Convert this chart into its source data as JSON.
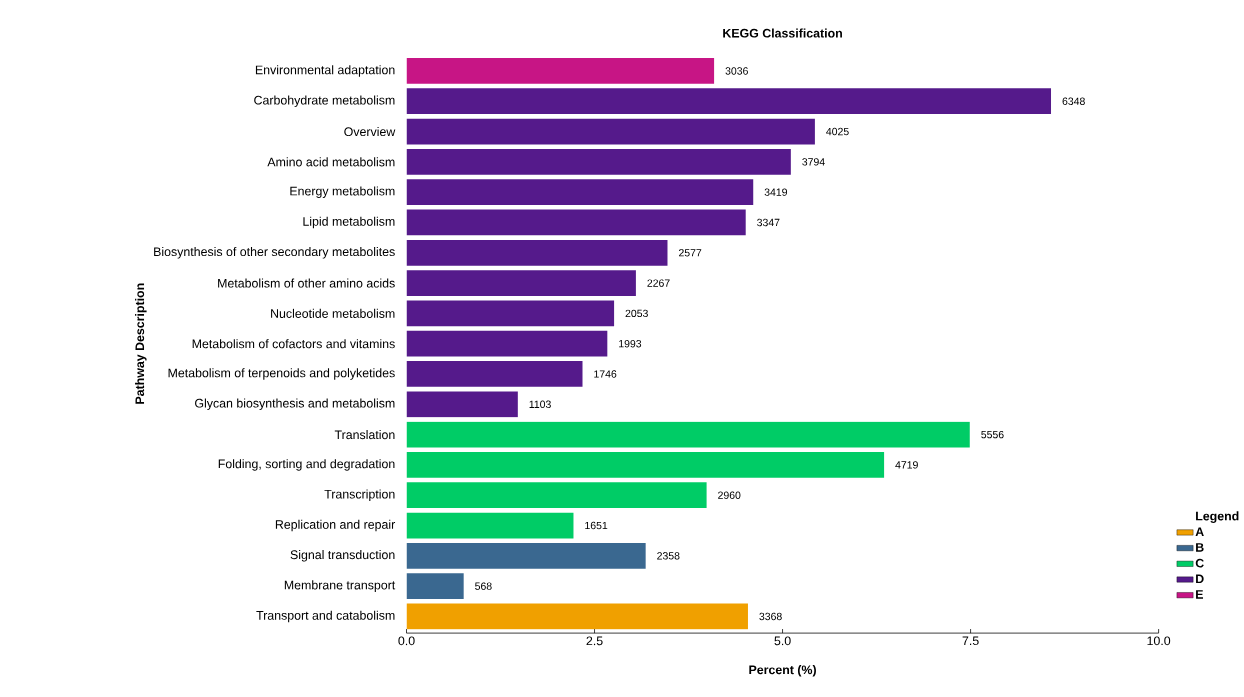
{
  "chart_data": {
    "type": "bar",
    "orientation": "horizontal",
    "title": "KEGG Classification",
    "xlabel": "Percent (%)",
    "ylabel": "Pathway Description",
    "legend_title": "Legend",
    "legend": "right",
    "categories": [
      "Environmental adaptation",
      "Carbohydrate metabolism",
      "Overview",
      "Amino acid metabolism",
      "Energy metabolism",
      "Lipid metabolism",
      "Biosynthesis of other secondary metabolites",
      "Metabolism of other amino acids",
      "Nucleotide metabolism",
      "Metabolism of cofactors and vitamins",
      "Metabolism of terpenoids and polyketides",
      "Glycan biosynthesis and metabolism",
      "Translation",
      "Folding, sorting and degradation",
      "Transcription",
      "Replication and repair",
      "Signal transduction",
      "Membrane transport",
      "Transport and catabolism"
    ],
    "series": [
      {
        "name": "A",
        "color": "#f0a000",
        "values": [
          null,
          null,
          null,
          null,
          null,
          null,
          null,
          null,
          null,
          null,
          null,
          null,
          null,
          null,
          null,
          null,
          null,
          null,
          4.54
        ]
      },
      {
        "name": "B",
        "color": "#3a6890",
        "values": [
          null,
          null,
          null,
          null,
          null,
          null,
          null,
          null,
          null,
          null,
          null,
          null,
          null,
          null,
          null,
          null,
          3.18,
          0.76,
          null
        ]
      },
      {
        "name": "C",
        "color": "#00cc66",
        "values": [
          null,
          null,
          null,
          null,
          null,
          null,
          null,
          null,
          null,
          null,
          null,
          null,
          7.49,
          6.35,
          3.99,
          2.22,
          null,
          null,
          null
        ]
      },
      {
        "name": "D",
        "color": "#551a8b",
        "values": [
          null,
          8.57,
          5.43,
          5.11,
          4.61,
          4.51,
          3.47,
          3.05,
          2.76,
          2.67,
          2.34,
          1.48,
          null,
          null,
          null,
          null,
          null,
          null,
          null
        ]
      },
      {
        "name": "E",
        "color": "#c71585",
        "values": [
          4.09,
          null,
          null,
          null,
          null,
          null,
          null,
          null,
          null,
          null,
          null,
          null,
          null,
          null,
          null,
          null,
          null,
          null,
          null
        ]
      }
    ],
    "annotations": [
      {
        "text": "3036",
        "x": 4.09,
        "y": "Environmental adaptation"
      },
      {
        "text": "6348",
        "x": 8.57,
        "y": "Carbohydrate metabolism"
      },
      {
        "text": "4025",
        "x": 5.43,
        "y": "Overview"
      },
      {
        "text": "3794",
        "x": 5.11,
        "y": "Amino acid metabolism"
      },
      {
        "text": "3419",
        "x": 4.61,
        "y": "Energy metabolism"
      },
      {
        "text": "3347",
        "x": 4.51,
        "y": "Lipid metabolism"
      },
      {
        "text": "2577",
        "x": 3.47,
        "y": "Biosynthesis of other secondary metabolites"
      },
      {
        "text": "2267",
        "x": 3.05,
        "y": "Metabolism of other amino acids"
      },
      {
        "text": "2053",
        "x": 2.76,
        "y": "Nucleotide metabolism"
      },
      {
        "text": "1993",
        "x": 2.67,
        "y": "Metabolism of cofactors and vitamins"
      },
      {
        "text": "1746",
        "x": 2.34,
        "y": "Metabolism of terpenoids and polyketides"
      },
      {
        "text": "1103",
        "x": 1.48,
        "y": "Glycan biosynthesis and metabolism"
      },
      {
        "text": "5556",
        "x": 7.49,
        "y": "Translation"
      },
      {
        "text": "4719",
        "x": 6.35,
        "y": "Folding, sorting and degradation"
      },
      {
        "text": "2960",
        "x": 3.99,
        "y": "Transcription"
      },
      {
        "text": "1651",
        "x": 2.22,
        "y": "Replication and repair"
      },
      {
        "text": "2358",
        "x": 3.18,
        "y": "Signal transduction"
      },
      {
        "text": "568",
        "x": 0.76,
        "y": "Membrane transport"
      },
      {
        "text": "3368",
        "x": 4.54,
        "y": "Transport and catabolism"
      }
    ],
    "xlim": [
      0,
      10
    ],
    "xticks": [
      {
        "value": 0,
        "label": "0.0"
      },
      {
        "value": 2.5,
        "label": "2.5"
      },
      {
        "value": 5,
        "label": "5.0"
      },
      {
        "value": 7.5,
        "label": "7.5"
      },
      {
        "value": 10,
        "label": "10.0"
      }
    ]
  }
}
